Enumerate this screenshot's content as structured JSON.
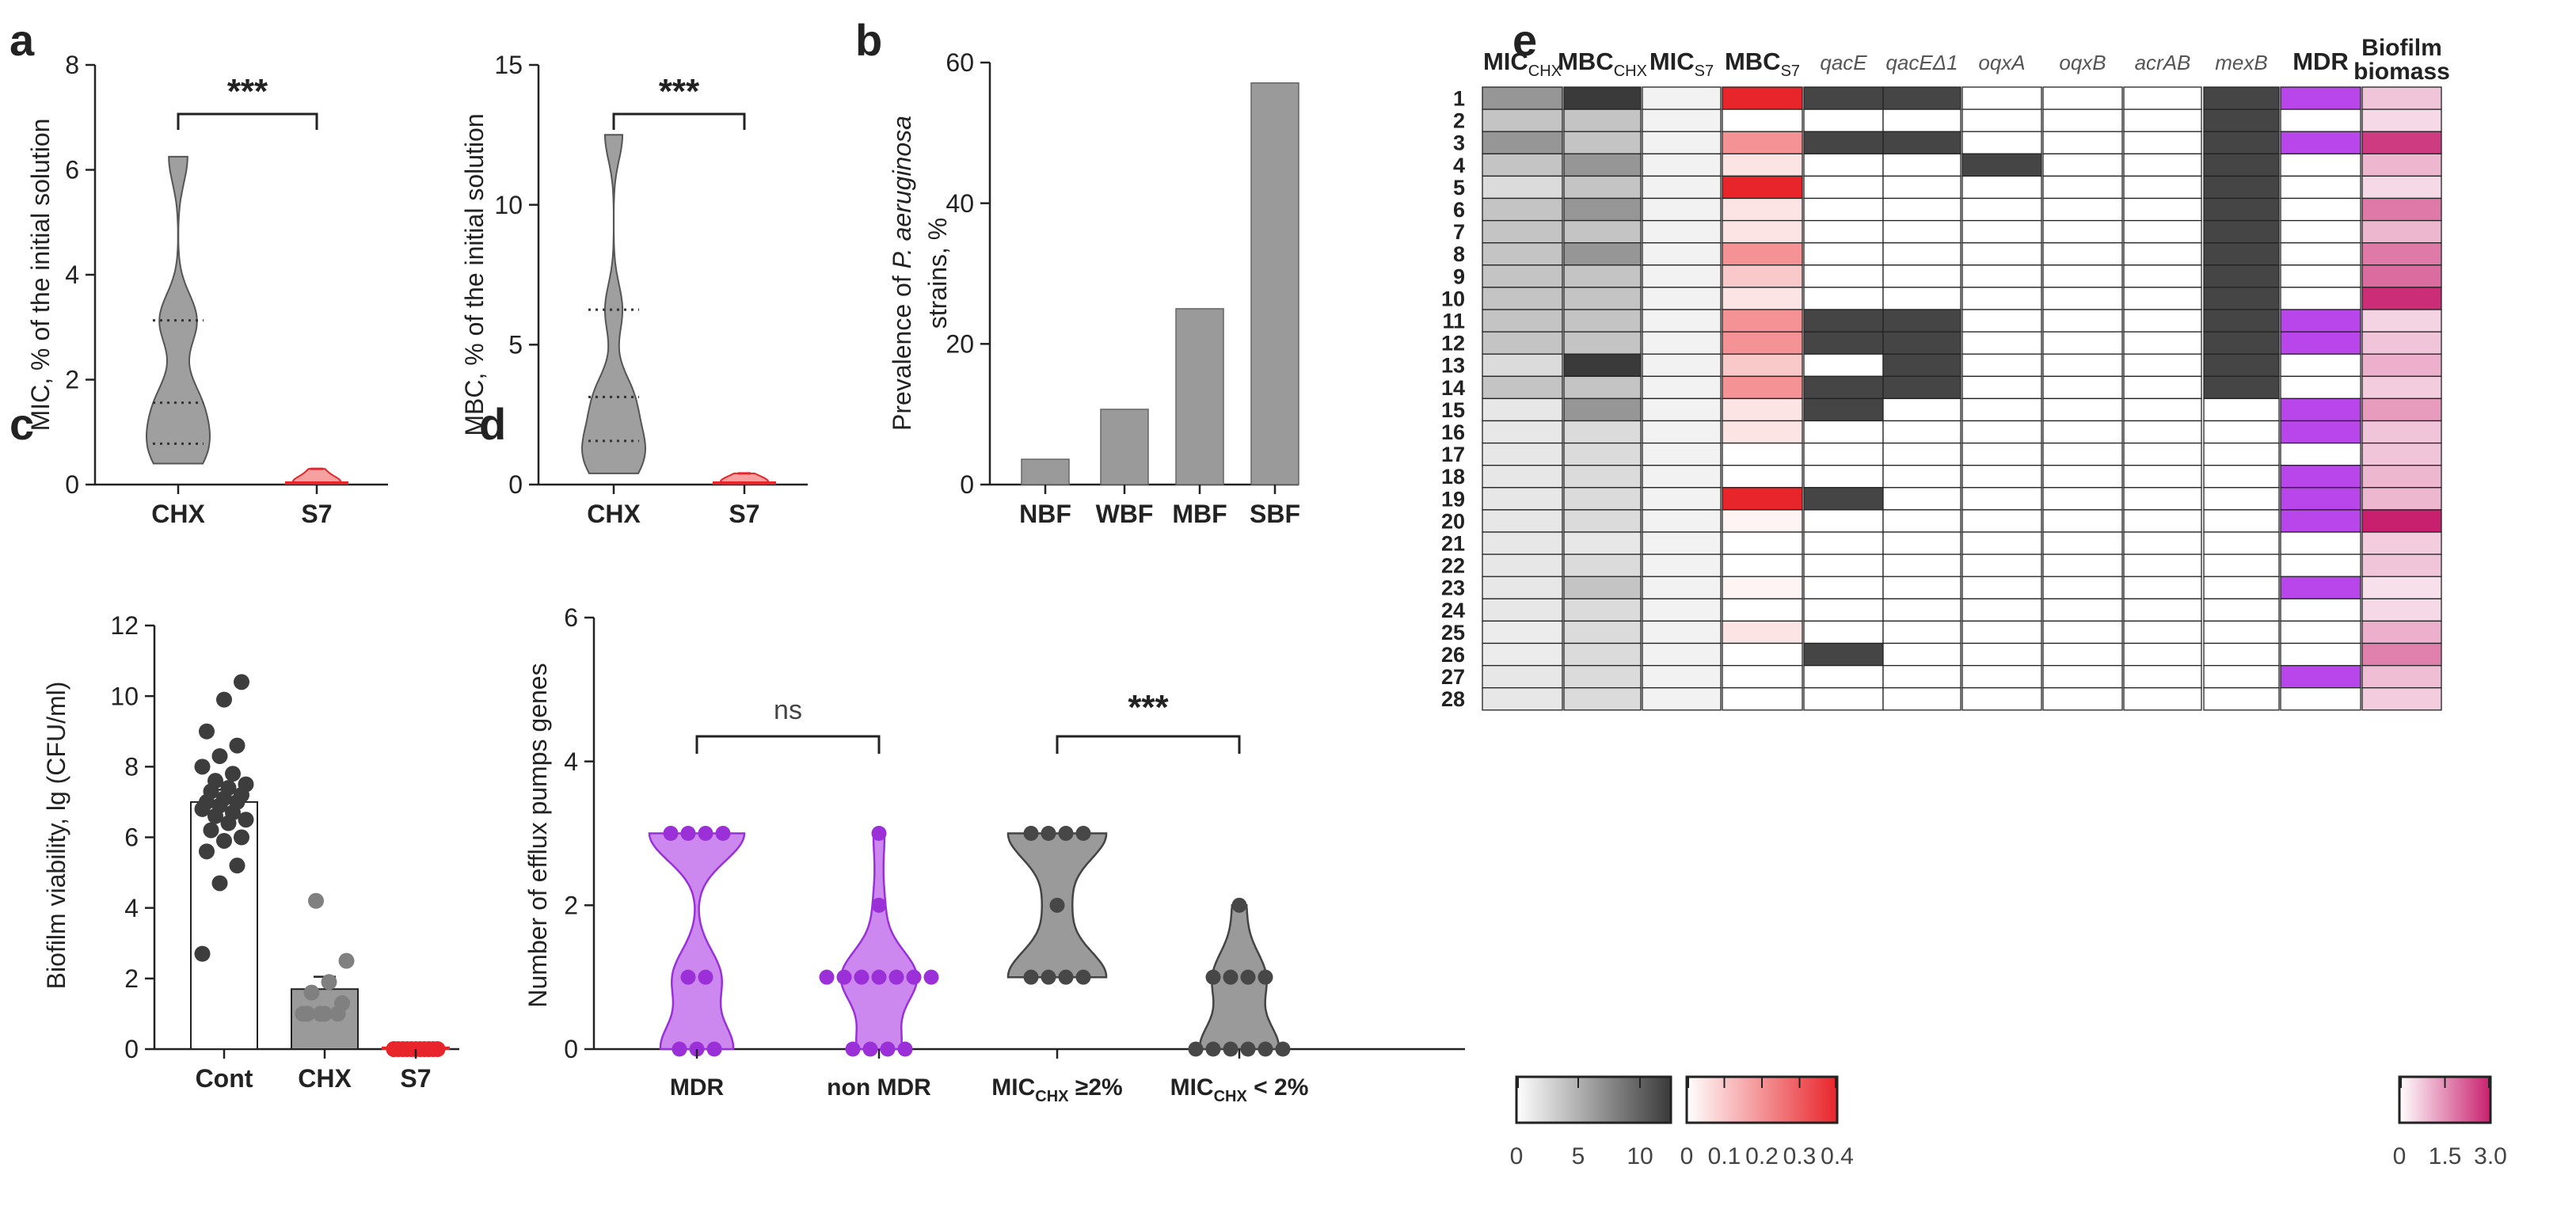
{
  "panel_letters": [
    "a",
    "b",
    "c",
    "d",
    "e"
  ],
  "colors": {
    "gray_fill": "#9a9a9a",
    "gray_dark": "#474747",
    "purple_fill": "#cc88ee",
    "purple_line": "#9b30d9",
    "red": "#e8252b",
    "mdr_purple": "#b846ea",
    "pink_max": "#c8206e"
  },
  "chart_data": [
    {
      "panel": "a-left",
      "type": "violin",
      "ylabel": "MIC, % of the initial solution",
      "ylim": [
        0,
        8
      ],
      "yticks": [
        "0",
        "2",
        "4",
        "6",
        "8"
      ],
      "categories": [
        "CHX",
        "S7"
      ],
      "significance": "***",
      "series": [
        {
          "name": "CHX",
          "values": [
            0.4,
            0.78,
            0.78,
            1.56,
            1.56,
            3.13,
            3.13,
            6.25
          ],
          "quartiles": [
            0.78,
            1.56,
            3.13
          ]
        },
        {
          "name": "S7",
          "values": [
            0.02,
            0.03,
            0.04,
            0.05,
            0.1,
            0.2,
            0.3
          ]
        }
      ]
    },
    {
      "panel": "a-right",
      "type": "violin",
      "ylabel": "MBC, % of the initial solution",
      "ylim": [
        0,
        15
      ],
      "yticks": [
        "0",
        "5",
        "10",
        "15"
      ],
      "categories": [
        "CHX",
        "S7"
      ],
      "significance": "***",
      "series": [
        {
          "name": "CHX",
          "values": [
            0.4,
            0.78,
            1.56,
            1.56,
            3.13,
            3.13,
            6.25,
            12.5
          ],
          "quartiles": [
            1.56,
            3.13,
            6.25
          ]
        },
        {
          "name": "S7",
          "values": [
            0.02,
            0.04,
            0.06,
            0.1,
            0.15,
            0.2,
            0.4
          ]
        }
      ]
    },
    {
      "panel": "b",
      "type": "bar",
      "ylabel": "Prevalence of P. aeruginosa strains, %",
      "ylabel_line1_prefix": "Prevalence of ",
      "ylabel_line1_italic": "P. aeruginosa",
      "ylabel_line2": "strains, %",
      "ylim": [
        0,
        60
      ],
      "yticks": [
        "0",
        "20",
        "40",
        "60"
      ],
      "categories": [
        "NBF",
        "WBF",
        "MBF",
        "SBF"
      ],
      "values": [
        3.6,
        10.7,
        25,
        57.1
      ]
    },
    {
      "panel": "c",
      "type": "bar",
      "ylabel": "Biofilm viability, lg (CFU/ml)",
      "ylim": [
        0,
        12
      ],
      "yticks": [
        "0",
        "2",
        "4",
        "6",
        "8",
        "10",
        "12"
      ],
      "categories": [
        "Cont",
        "CHX",
        "S7"
      ],
      "values": [
        7.0,
        1.7,
        0.05
      ],
      "errors": [
        0.35,
        0.35,
        0
      ],
      "points": [
        [
          2.7,
          4.7,
          5.2,
          5.6,
          5.9,
          6.0,
          6.2,
          6.4,
          6.5,
          6.6,
          6.7,
          6.8,
          6.9,
          7.0,
          7.0,
          7.1,
          7.2,
          7.3,
          7.4,
          7.5,
          7.6,
          7.8,
          8.0,
          8.3,
          8.6,
          9.0,
          9.9,
          10.4
        ],
        [
          1.0,
          1.0,
          1.0,
          1.0,
          1.0,
          1.3,
          1.6,
          1.9,
          2.5,
          4.2
        ],
        [
          0.0,
          0.0,
          0.0,
          0.0,
          0.0,
          0.0,
          0.0,
          0.0,
          0.0,
          0.0,
          0.0,
          0.0
        ]
      ]
    },
    {
      "panel": "d",
      "type": "violin",
      "ylabel": "Number of efflux pumps genes",
      "ylim": [
        0,
        6
      ],
      "yticks": [
        "0",
        "2",
        "4",
        "6"
      ],
      "categories": [
        "MDR",
        "non MDR",
        "MIC_CHX ≥2%",
        "MIC_CHX < 2%"
      ],
      "significance": [
        {
          "groups": [
            "MDR",
            "non MDR"
          ],
          "label": "ns"
        },
        {
          "groups": [
            "MIC_CHX ≥2%",
            "MIC_CHX < 2%"
          ],
          "label": "***"
        }
      ],
      "series": [
        {
          "name": "MDR",
          "values": [
            0,
            0,
            0,
            1,
            1,
            3,
            3,
            3,
            3
          ]
        },
        {
          "name": "non MDR",
          "values": [
            0,
            0,
            0,
            0,
            1,
            1,
            1,
            1,
            1,
            1,
            1,
            2,
            3
          ]
        },
        {
          "name": "MIC_CHX ≥2%",
          "values": [
            1,
            1,
            1,
            1,
            2,
            3,
            3,
            3,
            3
          ]
        },
        {
          "name": "MIC_CHX < 2%",
          "values": [
            0,
            0,
            0,
            0,
            0,
            0,
            1,
            1,
            1,
            1,
            2
          ]
        }
      ]
    },
    {
      "panel": "e",
      "type": "heatmap",
      "columns": [
        {
          "main": "MIC",
          "sub": "CHX",
          "style": "bold"
        },
        {
          "main": "MBC",
          "sub": "CHX",
          "style": "bold"
        },
        {
          "main": "MIC",
          "sub": "S7",
          "style": "bold"
        },
        {
          "main": "MBC",
          "sub": "S7",
          "style": "bold"
        },
        {
          "main": "qacE",
          "sub": "",
          "style": "italic"
        },
        {
          "main": "qacEΔ1",
          "sub": "",
          "style": "italic"
        },
        {
          "main": "oqxA",
          "sub": "",
          "style": "italic"
        },
        {
          "main": "oqxB",
          "sub": "",
          "style": "italic"
        },
        {
          "main": "acrAB",
          "sub": "",
          "style": "italic"
        },
        {
          "main": "mexB",
          "sub": "",
          "style": "italic"
        },
        {
          "main": "MDR",
          "sub": "",
          "style": "bold"
        },
        {
          "main": "Biofilm",
          "main2": "biomass",
          "sub": "",
          "style": "bold"
        }
      ],
      "rows": [
        "1",
        "2",
        "3",
        "4",
        "5",
        "6",
        "7",
        "8",
        "9",
        "10",
        "11",
        "12",
        "13",
        "14",
        "15",
        "16",
        "17",
        "18",
        "19",
        "20",
        "21",
        "22",
        "23",
        "24",
        "25",
        "26",
        "27",
        "28"
      ],
      "values": {
        "mic_chx": [
          6.25,
          3.13,
          6.25,
          3.13,
          1.56,
          3.13,
          3.13,
          3.13,
          3.13,
          3.13,
          3.13,
          3.13,
          1.56,
          3.13,
          0.78,
          0.78,
          0.78,
          0.78,
          0.78,
          0.78,
          0.78,
          0.78,
          0.78,
          0.78,
          0.4,
          0.4,
          0.78,
          0.78
        ],
        "mbc_chx": [
          12.5,
          3.13,
          3.13,
          6.25,
          3.13,
          6.25,
          3.13,
          6.25,
          3.13,
          3.13,
          3.13,
          3.13,
          12.5,
          3.13,
          6.25,
          1.56,
          1.56,
          1.56,
          1.56,
          1.56,
          0.78,
          1.56,
          3.13,
          1.56,
          1.56,
          1.56,
          1.56,
          1.56
        ],
        "mic_s7": [
          0,
          0,
          0,
          0,
          0,
          0,
          0,
          0,
          0,
          0,
          0,
          0,
          0,
          0,
          0,
          0,
          0,
          0,
          0,
          0,
          0,
          0,
          0,
          0,
          0,
          0,
          0,
          0
        ],
        "mbc_s7": [
          0.4,
          0,
          0.2,
          0.05,
          0.4,
          0.05,
          0.05,
          0.2,
          0.1,
          0.05,
          0.2,
          0.2,
          0.1,
          0.2,
          0.05,
          0.05,
          0,
          0,
          0.4,
          0.02,
          0,
          0,
          0.02,
          0,
          0.05,
          0,
          0,
          0
        ],
        "qacE": [
          1,
          0,
          1,
          0,
          0,
          0,
          0,
          0,
          0,
          0,
          1,
          1,
          0,
          1,
          1,
          0,
          0,
          0,
          1,
          0,
          0,
          0,
          0,
          0,
          0,
          1,
          0,
          0
        ],
        "qacE_delta1": [
          1,
          0,
          1,
          0,
          0,
          0,
          0,
          0,
          0,
          0,
          1,
          1,
          1,
          1,
          0,
          0,
          0,
          0,
          0,
          0,
          0,
          0,
          0,
          0,
          0,
          0,
          0,
          0
        ],
        "oqxA": [
          0,
          0,
          0,
          1,
          0,
          0,
          0,
          0,
          0,
          0,
          0,
          0,
          0,
          0,
          0,
          0,
          0,
          0,
          0,
          0,
          0,
          0,
          0,
          0,
          0,
          0,
          0,
          0
        ],
        "oqxB": [
          0,
          0,
          0,
          0,
          0,
          0,
          0,
          0,
          0,
          0,
          0,
          0,
          0,
          0,
          0,
          0,
          0,
          0,
          0,
          0,
          0,
          0,
          0,
          0,
          0,
          0,
          0,
          0
        ],
        "acrAB": [
          0,
          0,
          0,
          0,
          0,
          0,
          0,
          0,
          0,
          0,
          0,
          0,
          0,
          0,
          0,
          0,
          0,
          0,
          0,
          0,
          0,
          0,
          0,
          0,
          0,
          0,
          0,
          0
        ],
        "mexB": [
          1,
          1,
          1,
          1,
          1,
          1,
          1,
          1,
          1,
          1,
          1,
          1,
          1,
          1,
          0,
          0,
          0,
          0,
          0,
          0,
          0,
          0,
          0,
          0,
          0,
          0,
          0,
          0
        ],
        "mdr": [
          1,
          0,
          1,
          0,
          0,
          0,
          0,
          0,
          0,
          0,
          1,
          1,
          0,
          0,
          1,
          1,
          0,
          1,
          1,
          1,
          0,
          0,
          1,
          0,
          0,
          0,
          1,
          0
        ],
        "biofilm": [
          0.6,
          0.3,
          2.6,
          0.8,
          0.3,
          1.7,
          0.8,
          1.7,
          1.9,
          2.8,
          0.4,
          0.6,
          0.9,
          0.5,
          1.2,
          0.6,
          0.6,
          0.8,
          0.8,
          3.0,
          0.5,
          0.6,
          0.2,
          0.3,
          0.9,
          1.6,
          0.7,
          0.5
        ]
      },
      "colorbars": [
        {
          "name": "gray",
          "ticks": [
            "0",
            "5",
            "10"
          ],
          "range": [
            0,
            12.5
          ],
          "from": "#ffffff",
          "to": "#3a3a3a"
        },
        {
          "name": "red",
          "ticks": [
            "0",
            "0.1",
            "0.2",
            "0.3",
            "0.4"
          ],
          "range": [
            0,
            0.4
          ],
          "from": "#ffffff",
          "to": "#e8252b"
        },
        {
          "name": "pink",
          "ticks": [
            "0",
            "1.5",
            "3.0"
          ],
          "range": [
            0,
            3
          ],
          "from": "#ffffff",
          "to": "#c8206e"
        }
      ]
    }
  ]
}
